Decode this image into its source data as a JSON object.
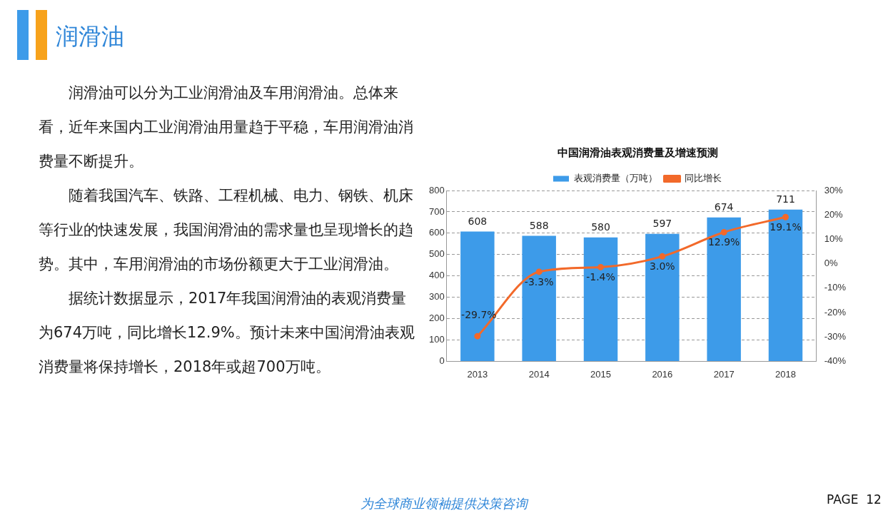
{
  "chart_data": [
    {
      "type": "other",
      "title": "润滑油",
      "annotations": [
        "润滑油可以分为工业润滑油及车用润滑油。总体来看，近年来国内工业润滑油用量趋于平稳，车用润滑油消费量不断提升。",
        "随着我国汽车、铁路、工程机械、电力、钢铁、机床等行业的快速发展，我国润滑油的需求量也呈现增长的趋势。其中，车用润滑油的市场份额更大于工业润滑油。",
        "据统计数据显示，2017年我国润滑油的表观消费量为674万吨，同比增长12.9%。预计未来中国润滑油表观消费量将保持增长，2018年或超700万吨。",
        "为全球商业领袖提供决策咨询",
        "PAGE  12"
      ]
    },
    {
      "type": "bar",
      "title": "中国润滑油表观消费量及增速预测",
      "categories": [
        "2013",
        "2014",
        "2015",
        "2016",
        "2017",
        "2018"
      ],
      "series": [
        {
          "name": "表观消费量（万吨）",
          "type": "bar",
          "color": "#3d9be9",
          "values": [
            608,
            588,
            580,
            597,
            674,
            711
          ],
          "value_labels": [
            "608",
            "588",
            "580",
            "597",
            "674",
            "711"
          ]
        },
        {
          "name": "同比增长",
          "type": "line",
          "axis": "y2",
          "color": "#f2692a",
          "values": [
            -29.7,
            -3.3,
            -1.4,
            3.0,
            12.9,
            19.1
          ],
          "value_labels": [
            "-29.7%",
            "-3.3%",
            "-1.4%",
            "3.0%",
            "12.9%",
            "19.1%"
          ]
        }
      ],
      "ylim": [
        0,
        800
      ],
      "yticks": [
        0,
        100,
        200,
        300,
        400,
        500,
        600,
        700,
        800
      ],
      "y2lim": [
        -40,
        30
      ],
      "y2ticks": [
        {
          "value": -40,
          "label": "-40%"
        },
        {
          "value": -30,
          "label": "-30%"
        },
        {
          "value": -20,
          "label": "-20%"
        },
        {
          "value": -10,
          "label": "-10%"
        },
        {
          "value": 0,
          "label": "0%"
        },
        {
          "value": 10,
          "label": "10%"
        },
        {
          "value": 20,
          "label": "20%"
        },
        {
          "value": 30,
          "label": "30%"
        }
      ],
      "grid": "y",
      "legend": "top",
      "marker": "circle"
    }
  ]
}
